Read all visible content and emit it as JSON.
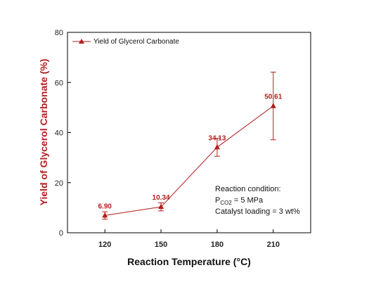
{
  "colors": {
    "series": "#b11f1f",
    "axis": "#000000"
  },
  "chart_data": {
    "type": "line",
    "categories": [
      "120",
      "150",
      "180",
      "210"
    ],
    "x": [
      120,
      150,
      180,
      210
    ],
    "series": [
      {
        "name": "Yield of Glycerol Carbonate",
        "values": [
          6.9,
          10.34,
          34.13,
          50.61
        ],
        "error": [
          1.5,
          1.6,
          3.6,
          13.5
        ],
        "data_labels": [
          "6.90",
          "10.34",
          "34.13",
          "50.61"
        ],
        "marker": "triangle-up"
      }
    ],
    "xlabel": "Reaction Temperature (°C)",
    "ylabel": "Yield of Glycerol Carbonate (%)",
    "xlim": [
      100,
      230
    ],
    "ylim": [
      0,
      80
    ],
    "yticks": [
      0,
      20,
      40,
      60,
      80
    ],
    "grid": false,
    "legend_position": "top-left",
    "annotation": {
      "line1": "Reaction condition:",
      "line2_prefix": "P",
      "line2_sub": "CO2",
      "line2_suffix": " = 5 MPa",
      "line3": "Catalyst loading = 3 wt%"
    }
  }
}
